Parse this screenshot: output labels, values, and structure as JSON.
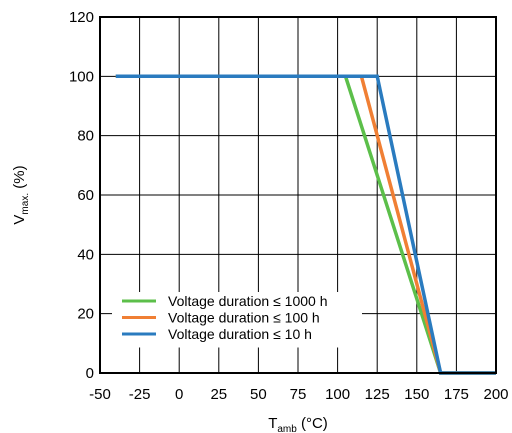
{
  "chart_data": {
    "type": "line",
    "title": "",
    "xlabel": {
      "main": "T",
      "sub": "amb",
      "rest": " (°C)"
    },
    "ylabel": {
      "main": "V",
      "sub": "max.",
      "rest": " (%)"
    },
    "xlim": [
      -50,
      200
    ],
    "ylim": [
      0,
      120
    ],
    "x_ticks": [
      -50,
      -25,
      0,
      25,
      50,
      75,
      100,
      125,
      150,
      175,
      200
    ],
    "x_tick_labels": [
      "-50",
      "-25",
      "0",
      "25",
      "50",
      "75",
      "100",
      "125",
      "150",
      "175",
      "200"
    ],
    "y_ticks": [
      0,
      20,
      40,
      60,
      80,
      100,
      120
    ],
    "y_tick_labels": [
      "0",
      "20",
      "40",
      "60",
      "80",
      "100",
      "120"
    ],
    "grid": true,
    "legend_position": "bottom-left",
    "series": [
      {
        "name": "Voltage duration ≤ 1000 h",
        "color": "#5cbf4a",
        "x": [
          -40,
          105,
          165,
          200
        ],
        "y": [
          100,
          100,
          0,
          0
        ]
      },
      {
        "name": "Voltage duration ≤ 100 h",
        "color": "#f07f34",
        "x": [
          -40,
          115,
          165,
          200
        ],
        "y": [
          100,
          100,
          0,
          0
        ]
      },
      {
        "name": "Voltage duration ≤ 10 h",
        "color": "#2a7bbf",
        "x": [
          -40,
          125,
          165,
          200
        ],
        "y": [
          100,
          100,
          0,
          0
        ]
      }
    ]
  }
}
